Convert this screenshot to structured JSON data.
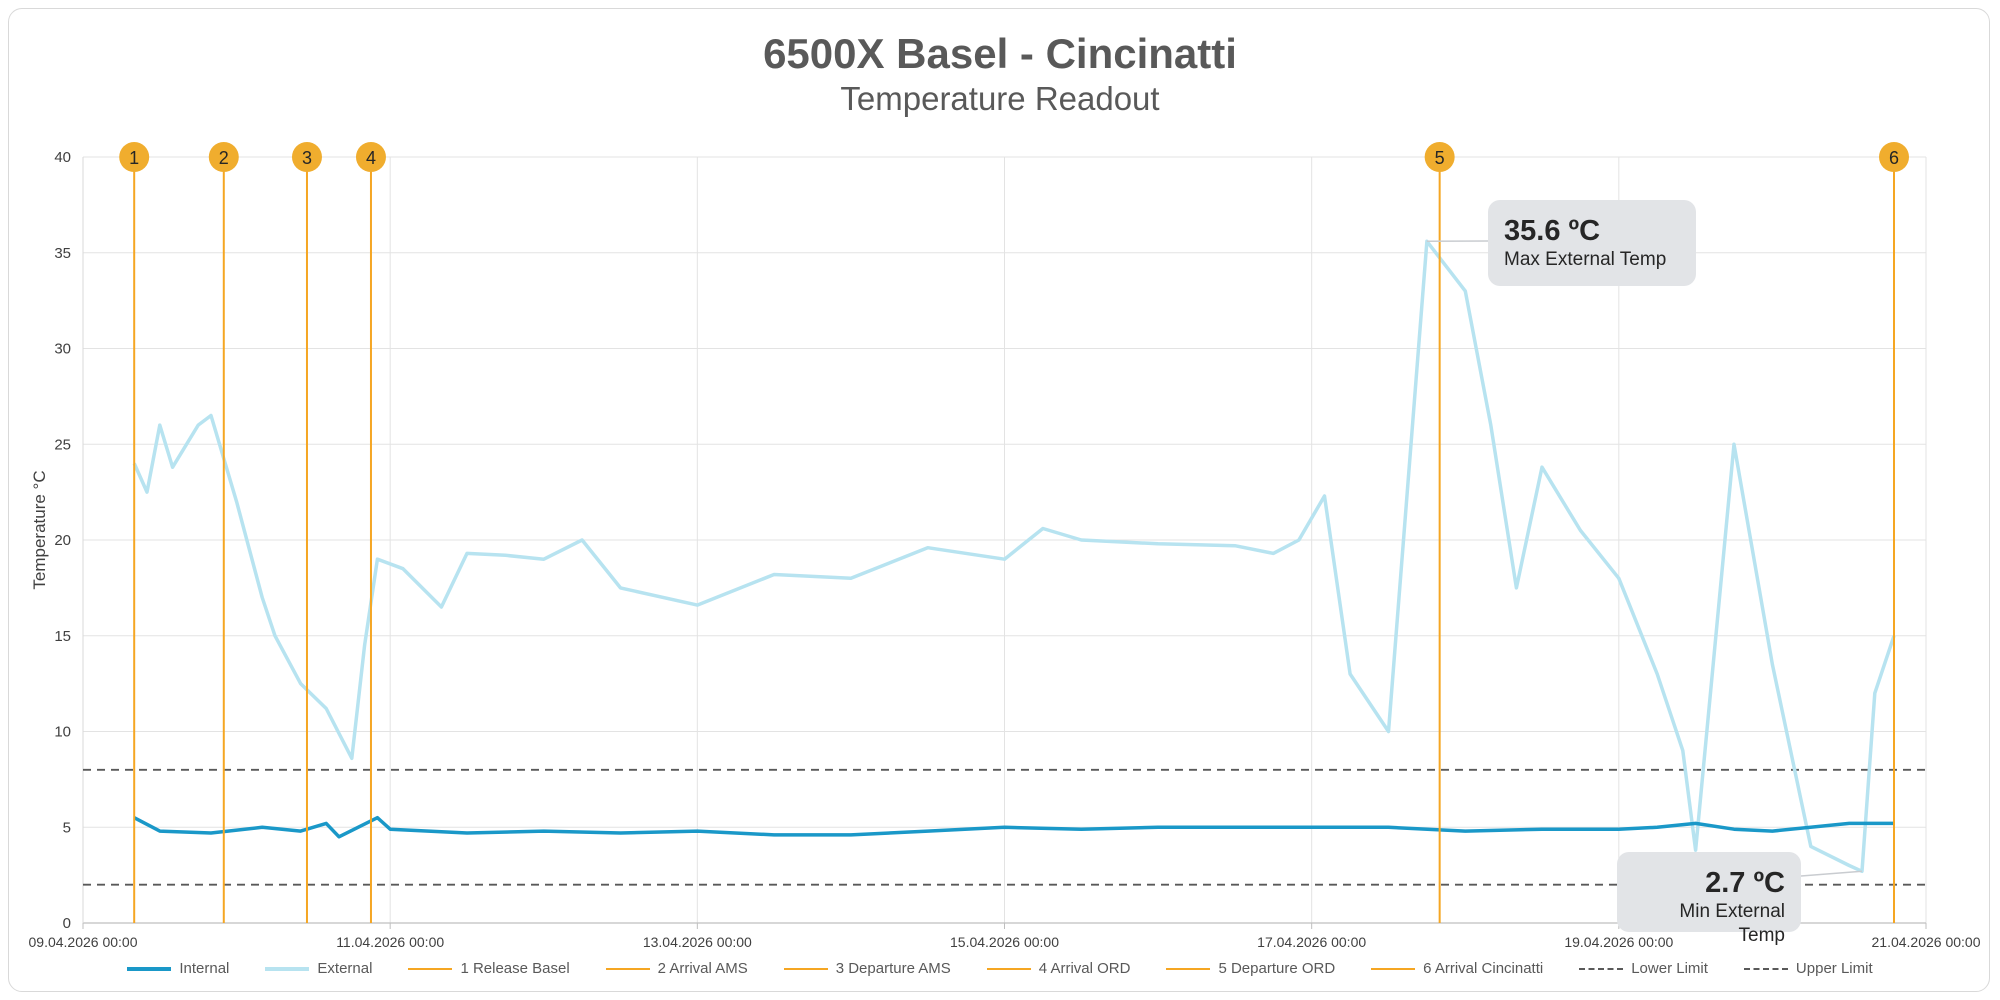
{
  "title": "6500X Basel - Cincinatti",
  "subtitle": "Temperature Readout",
  "colors": {
    "internal": "#1a98c8",
    "external": "#b7e3f0",
    "event": "#f5a623",
    "event_marker": "#f0ad2e",
    "limit": "#595959",
    "grid": "#e3e3e3"
  },
  "chart_data": {
    "type": "line",
    "ylabel": "Temperature °C",
    "xlabel": "",
    "ylim": [
      0,
      40
    ],
    "yticks": [
      0,
      5,
      10,
      15,
      20,
      25,
      30,
      35,
      40
    ],
    "xlim": [
      "2026-04-09T00:00",
      "2026-04-21T00:00"
    ],
    "xticks": [
      "09.04.2026 00:00",
      "11.04.2026 00:00",
      "13.04.2026 00:00",
      "15.04.2026 00:00",
      "17.04.2026 00:00",
      "19.04.2026 00:00",
      "21.04.2026 00:00"
    ],
    "grid": true,
    "legend_position": "bottom",
    "series": [
      {
        "name": "Internal",
        "x": [
          "2026-04-09T08:00",
          "2026-04-09T12:00",
          "2026-04-09T20:00",
          "2026-04-10T04:00",
          "2026-04-10T10:00",
          "2026-04-10T14:00",
          "2026-04-10T16:00",
          "2026-04-10T22:00",
          "2026-04-11T00:00",
          "2026-04-11T12:00",
          "2026-04-12T00:00",
          "2026-04-12T12:00",
          "2026-04-13T00:00",
          "2026-04-13T12:00",
          "2026-04-14T00:00",
          "2026-04-14T12:00",
          "2026-04-15T00:00",
          "2026-04-15T12:00",
          "2026-04-16T00:00",
          "2026-04-16T12:00",
          "2026-04-17T00:00",
          "2026-04-17T12:00",
          "2026-04-18T00:00",
          "2026-04-18T12:00",
          "2026-04-19T00:00",
          "2026-04-19T06:00",
          "2026-04-19T12:00",
          "2026-04-19T18:00",
          "2026-04-20T00:00",
          "2026-04-20T12:00",
          "2026-04-20T19:00"
        ],
        "values": [
          5.5,
          4.8,
          4.7,
          5.0,
          4.8,
          5.2,
          4.5,
          5.5,
          4.9,
          4.7,
          4.8,
          4.7,
          4.8,
          4.6,
          4.6,
          4.8,
          5.0,
          4.9,
          5.0,
          5.0,
          5.0,
          5.0,
          4.8,
          4.9,
          4.9,
          5.0,
          5.2,
          4.9,
          4.8,
          5.2,
          5.2
        ]
      },
      {
        "name": "External",
        "x": [
          "2026-04-09T08:00",
          "2026-04-09T10:00",
          "2026-04-09T12:00",
          "2026-04-09T14:00",
          "2026-04-09T18:00",
          "2026-04-09T20:00",
          "2026-04-10T00:00",
          "2026-04-10T04:00",
          "2026-04-10T06:00",
          "2026-04-10T10:00",
          "2026-04-10T14:00",
          "2026-04-10T18:00",
          "2026-04-10T20:00",
          "2026-04-10T22:00",
          "2026-04-11T02:00",
          "2026-04-11T08:00",
          "2026-04-11T12:00",
          "2026-04-11T18:00",
          "2026-04-12T00:00",
          "2026-04-12T06:00",
          "2026-04-12T12:00",
          "2026-04-13T00:00",
          "2026-04-13T12:00",
          "2026-04-14T00:00",
          "2026-04-14T12:00",
          "2026-04-15T00:00",
          "2026-04-15T06:00",
          "2026-04-15T12:00",
          "2026-04-16T00:00",
          "2026-04-16T12:00",
          "2026-04-16T18:00",
          "2026-04-16T22:00",
          "2026-04-17T02:00",
          "2026-04-17T06:00",
          "2026-04-17T12:00",
          "2026-04-17T18:00",
          "2026-04-18T00:00",
          "2026-04-18T04:00",
          "2026-04-18T08:00",
          "2026-04-18T12:00",
          "2026-04-18T18:00",
          "2026-04-19T00:00",
          "2026-04-19T06:00",
          "2026-04-19T10:00",
          "2026-04-19T12:00",
          "2026-04-19T18:00",
          "2026-04-20T00:00",
          "2026-04-20T06:00",
          "2026-04-20T12:00",
          "2026-04-20T14:00",
          "2026-04-20T16:00",
          "2026-04-20T19:00"
        ],
        "values": [
          24.0,
          22.5,
          26.0,
          23.8,
          26.0,
          26.5,
          22.0,
          17.0,
          15.0,
          12.5,
          11.2,
          8.6,
          14.5,
          19.0,
          18.5,
          16.5,
          19.3,
          19.2,
          19.0,
          20.0,
          17.5,
          16.6,
          18.2,
          18.0,
          19.6,
          19.0,
          20.6,
          20.0,
          19.8,
          19.7,
          19.3,
          20.0,
          22.3,
          13.0,
          10.0,
          35.6,
          33.0,
          26.0,
          17.5,
          23.8,
          20.5,
          18.0,
          13.0,
          9.0,
          3.8,
          25.0,
          13.5,
          4.0,
          3.0,
          2.7,
          12.0,
          15.0
        ]
      }
    ],
    "events": [
      {
        "id": "1",
        "label": "1 Release Basel",
        "x": "2026-04-09T08:00"
      },
      {
        "id": "2",
        "label": "2 Arrival AMS",
        "x": "2026-04-09T22:00"
      },
      {
        "id": "3",
        "label": "3 Departure AMS",
        "x": "2026-04-10T11:00"
      },
      {
        "id": "4",
        "label": "4 Arrival ORD",
        "x": "2026-04-10T21:00"
      },
      {
        "id": "5",
        "label": "5 Departure ORD",
        "x": "2026-04-17T20:00"
      },
      {
        "id": "6",
        "label": "6 Arrival  Cincinatti",
        "x": "2026-04-20T19:00"
      }
    ],
    "limits": [
      {
        "name": "Lower Limit",
        "value": 2
      },
      {
        "name": "Upper Limit",
        "value": 8
      }
    ],
    "annotations": [
      {
        "value_text": "35.6 ºC",
        "label": "Max External Temp",
        "x": "2026-04-17T18:00",
        "y": 35.6
      },
      {
        "value_text": "2.7 ºC",
        "label": "Min External Temp",
        "x": "2026-04-20T14:00",
        "y": 2.7
      }
    ]
  }
}
